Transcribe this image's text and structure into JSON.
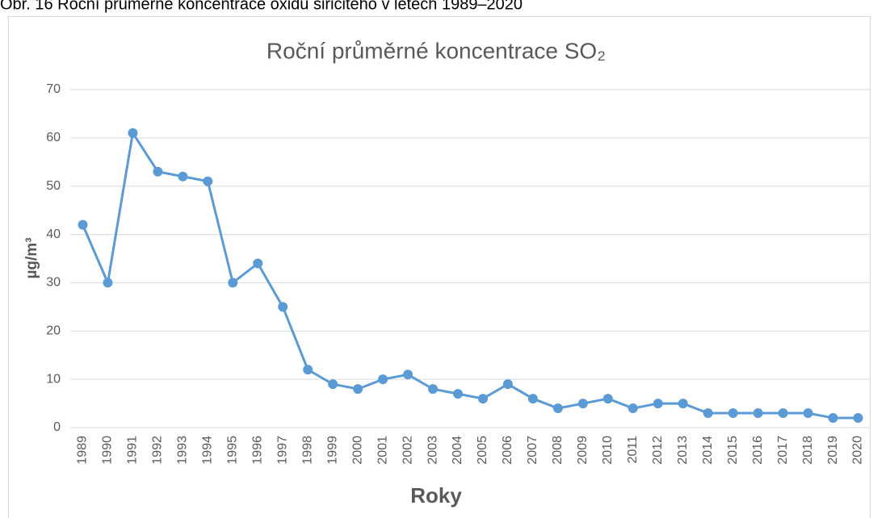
{
  "caption": "Obr. 16 Roční průměrné koncentrace oxidu siřičitého v letech 1989–2020",
  "chart_data": {
    "type": "line",
    "title": "Roční průměrné koncentrace SO₂",
    "x_label": "Roky",
    "y_label": "µg/m³",
    "categories": [
      "1989",
      "1990",
      "1991",
      "1992",
      "1993",
      "1994",
      "1995",
      "1996",
      "1997",
      "1998",
      "1999",
      "2000",
      "2001",
      "2002",
      "2003",
      "2004",
      "2005",
      "2006",
      "2007",
      "2008",
      "2009",
      "2010",
      "2011",
      "2012",
      "2013",
      "2014",
      "2015",
      "2016",
      "2017",
      "2018",
      "2019",
      "2020"
    ],
    "values": [
      42,
      30,
      61,
      53,
      52,
      51,
      30,
      34,
      25,
      12,
      9,
      8,
      10,
      11,
      8,
      7,
      6,
      9,
      6,
      4,
      5,
      6,
      4,
      5,
      5,
      3,
      3,
      3,
      3,
      3,
      2,
      2
    ],
    "color": "#5b9bd5",
    "ylim": [
      0,
      70
    ],
    "yticks": [
      0,
      10,
      20,
      30,
      40,
      50,
      60,
      70
    ],
    "grid": true
  }
}
